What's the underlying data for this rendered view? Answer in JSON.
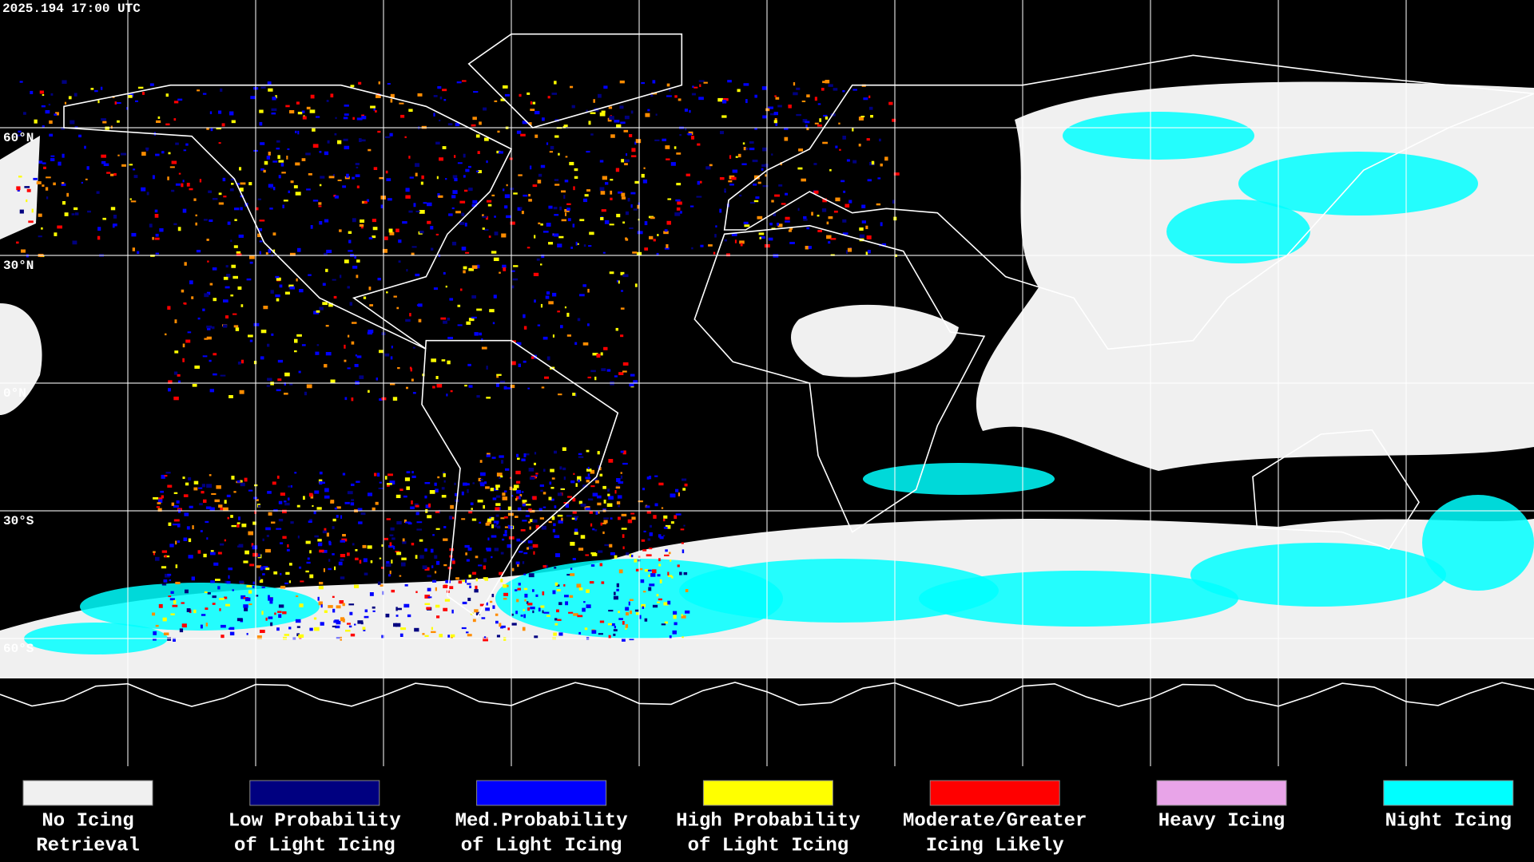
{
  "header": {
    "timestamp": "2025.194 17:00 UTC"
  },
  "map": {
    "latitude_labels": [
      "60°N",
      "30°N",
      "0°N",
      "30°S",
      "60°S"
    ]
  },
  "legend": {
    "items": [
      {
        "lines": [
          "No Icing",
          "Retrieval"
        ],
        "color": "#f0f0f0"
      },
      {
        "lines": [
          "Low Probability",
          "of Light Icing"
        ],
        "color": "#000080"
      },
      {
        "lines": [
          "Med.Probability",
          "of Light Icing"
        ],
        "color": "#0000ff"
      },
      {
        "lines": [
          "High Probability",
          "of Light Icing"
        ],
        "color": "#ffff00"
      },
      {
        "lines": [
          "Moderate/Greater",
          "Icing Likely"
        ],
        "color": "#ff0000"
      },
      {
        "lines": [
          "Heavy Icing"
        ],
        "color": "#e8a4e8"
      },
      {
        "lines": [
          "Night Icing"
        ],
        "color": "#00ffff"
      }
    ]
  }
}
